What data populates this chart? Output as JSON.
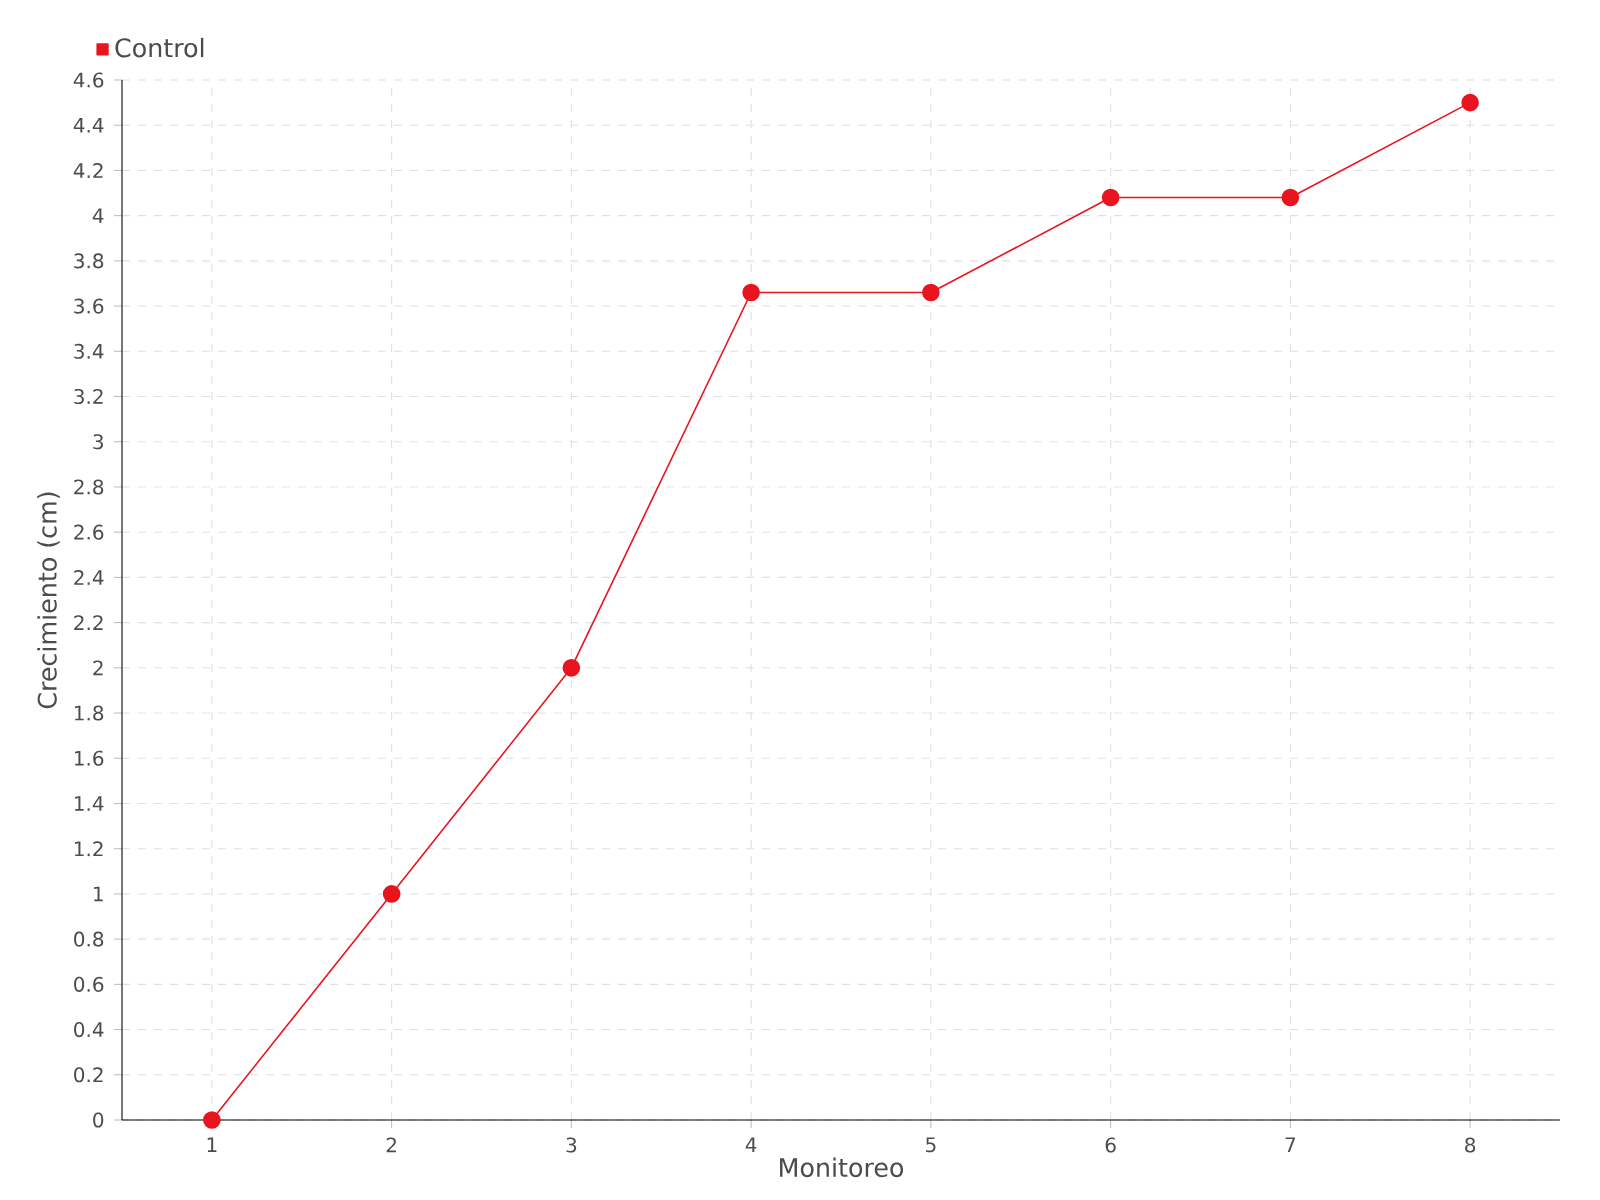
{
  "chart_data": {
    "type": "line",
    "xlabel": "Monitoreo",
    "ylabel": "Crecimiento (cm)",
    "x": [
      1,
      2,
      3,
      4,
      5,
      6,
      7,
      8
    ],
    "series": [
      {
        "name": "Control",
        "color": "#e8141e",
        "values": [
          0,
          1,
          2,
          3.66,
          3.66,
          4.08,
          4.08,
          4.5
        ]
      }
    ],
    "xlim": [
      0.5,
      8.5
    ],
    "xticks": [
      1,
      2,
      3,
      4,
      5,
      6,
      7,
      8
    ],
    "ylim": [
      0,
      4.6
    ],
    "yticks": [
      0,
      0.2,
      0.4,
      0.6,
      0.8,
      1,
      1.2,
      1.4,
      1.6,
      1.8,
      2,
      2.2,
      2.4,
      2.6,
      2.8,
      3,
      3.2,
      3.4,
      3.6,
      3.8,
      4,
      4.2,
      4.4,
      4.6
    ],
    "grid": true,
    "legend": "top left",
    "marker": "circle",
    "line_style": "solid"
  }
}
